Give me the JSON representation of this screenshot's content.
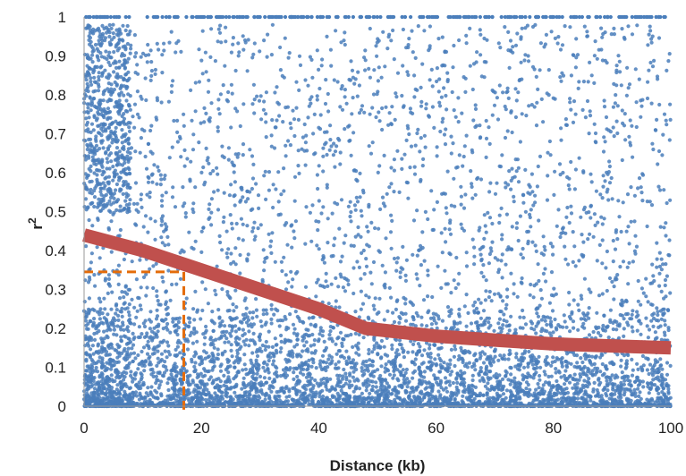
{
  "chart_data": {
    "type": "scatter",
    "title": "",
    "xlabel": "Distance (kb)",
    "ylabel_main": "r",
    "ylabel_sup": "2",
    "xlim": [
      0,
      100
    ],
    "ylim": [
      0,
      1
    ],
    "x_ticks": [
      "0",
      "20",
      "40",
      "60",
      "80",
      "100"
    ],
    "y_ticks": [
      "0",
      "0.1",
      "0.2",
      "0.3",
      "0.4",
      "0.5",
      "0.6",
      "0.7",
      "0.8",
      "0.9",
      "1"
    ],
    "grid": false,
    "legend": "none",
    "colors": {
      "points": "#4a7ebb",
      "trend": "#c0504d",
      "reference": "#e46c0a"
    },
    "series": [
      {
        "kind": "scatter-points",
        "approx_count": 7000,
        "density_note_x": "higher density near 0-10",
        "top_line_value": 1
      },
      {
        "kind": "fitted-decay-curve",
        "x": [
          0,
          10,
          20,
          30,
          40,
          48,
          60,
          70,
          80,
          90,
          100
        ],
        "y": [
          0.44,
          0.4,
          0.35,
          0.3,
          0.25,
          0.2,
          0.18,
          0.17,
          0.16,
          0.155,
          0.15
        ]
      }
    ],
    "annotations": [
      {
        "type": "reference-lines",
        "x": 17,
        "y": 0.345,
        "style": "dashed"
      }
    ]
  }
}
